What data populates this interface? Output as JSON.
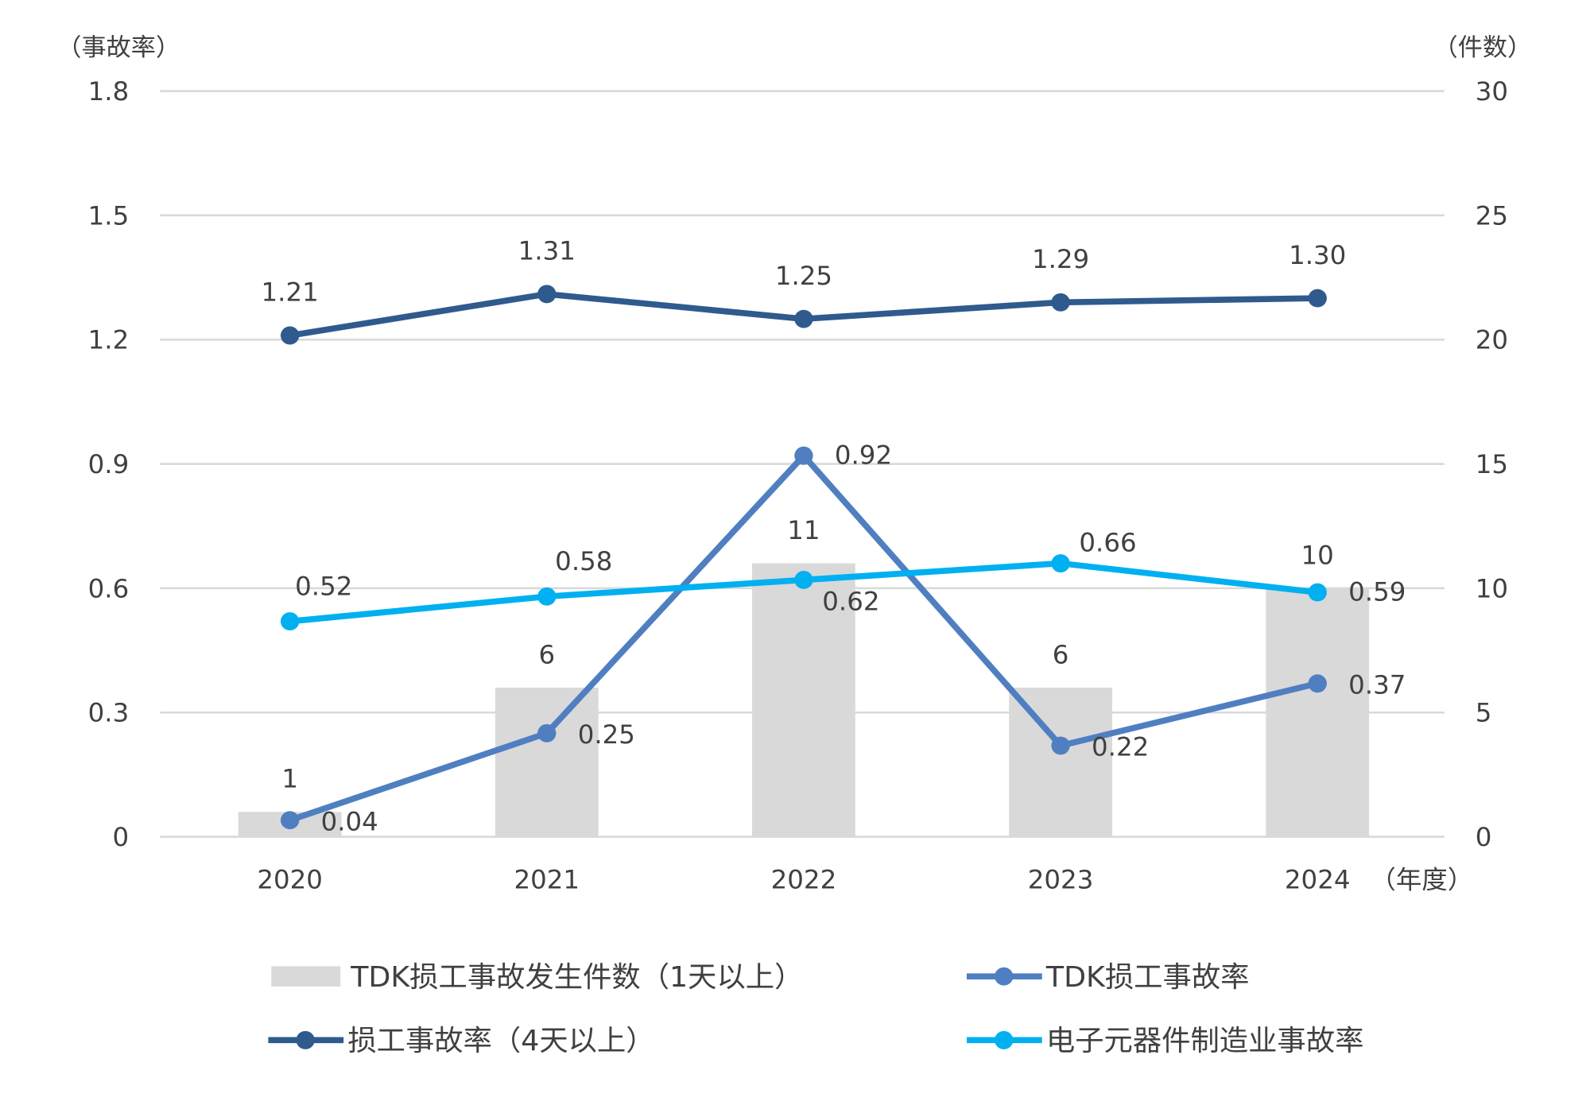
{
  "chart_data": {
    "type": "bar+line",
    "categories": [
      "2020",
      "2021",
      "2022",
      "2023",
      "2024"
    ],
    "x_unit_label": "（年度）",
    "left_axis": {
      "label": "（事故率）",
      "ylim": [
        0,
        1.8
      ],
      "ticks": [
        "0",
        "0.3",
        "0.6",
        "0.9",
        "1.2",
        "1.5",
        "1.8"
      ]
    },
    "right_axis": {
      "label": "（件数）",
      "ylim": [
        0,
        30
      ],
      "ticks": [
        "0",
        "5",
        "10",
        "15",
        "20",
        "25",
        "30"
      ]
    },
    "grid": true,
    "legend_placement": "bottom",
    "series": [
      {
        "name": "TDK损工事故发生件数（1天以上）",
        "type": "bar",
        "axis": "right",
        "color": "#d9d9d9",
        "values": [
          1,
          6,
          11,
          6,
          10
        ],
        "labels": [
          "1",
          "6",
          "11",
          "6",
          "10"
        ]
      },
      {
        "name": "TDK损工事故率",
        "type": "line",
        "axis": "left",
        "color": "#4f7fc0",
        "values": [
          0.04,
          0.25,
          0.92,
          0.22,
          0.37
        ],
        "labels": [
          "0.04",
          "0.25",
          "0.92",
          "0.22",
          "0.37"
        ]
      },
      {
        "name": "损工事故率（4天以上）",
        "type": "line",
        "axis": "left",
        "color": "#2f5a8e",
        "values": [
          1.21,
          1.31,
          1.25,
          1.29,
          1.3
        ],
        "labels": [
          "1.21",
          "1.31",
          "1.25",
          "1.29",
          "1.30"
        ]
      },
      {
        "name": "电子元器件制造业事故率",
        "type": "line",
        "axis": "left",
        "color": "#00b0f0",
        "values": [
          0.52,
          0.58,
          0.62,
          0.66,
          0.59
        ],
        "labels": [
          "0.52",
          "0.58",
          "0.62",
          "0.66",
          "0.59"
        ]
      }
    ]
  }
}
